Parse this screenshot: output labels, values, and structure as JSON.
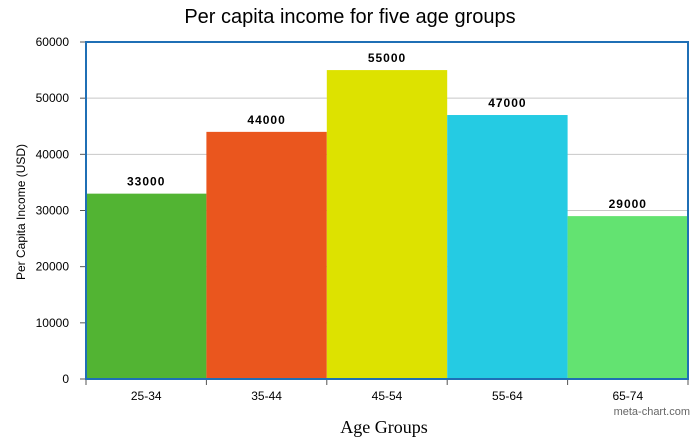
{
  "chart_data": {
    "type": "bar",
    "title": "Per capita income for five age groups",
    "xlabel": "Age Groups",
    "ylabel": "Per Capita Income (USD)",
    "categories": [
      "25-34",
      "35-44",
      "45-54",
      "55-64",
      "65-74"
    ],
    "values": [
      33000,
      44000,
      55000,
      47000,
      29000
    ],
    "data_labels": [
      "33000",
      "44000",
      "55000",
      "47000",
      "29000"
    ],
    "colors": [
      "#52b433",
      "#ea561e",
      "#dde200",
      "#25cbe3",
      "#63e371"
    ],
    "ylim": [
      0,
      60000
    ],
    "yticks": [
      0,
      10000,
      20000,
      30000,
      40000,
      50000,
      60000
    ],
    "ytick_labels": [
      "0",
      "10000",
      "20000",
      "30000",
      "40000",
      "50000",
      "60000"
    ],
    "grid": true,
    "frame_color": "#1f6fb5"
  },
  "watermark": "meta-chart.com"
}
